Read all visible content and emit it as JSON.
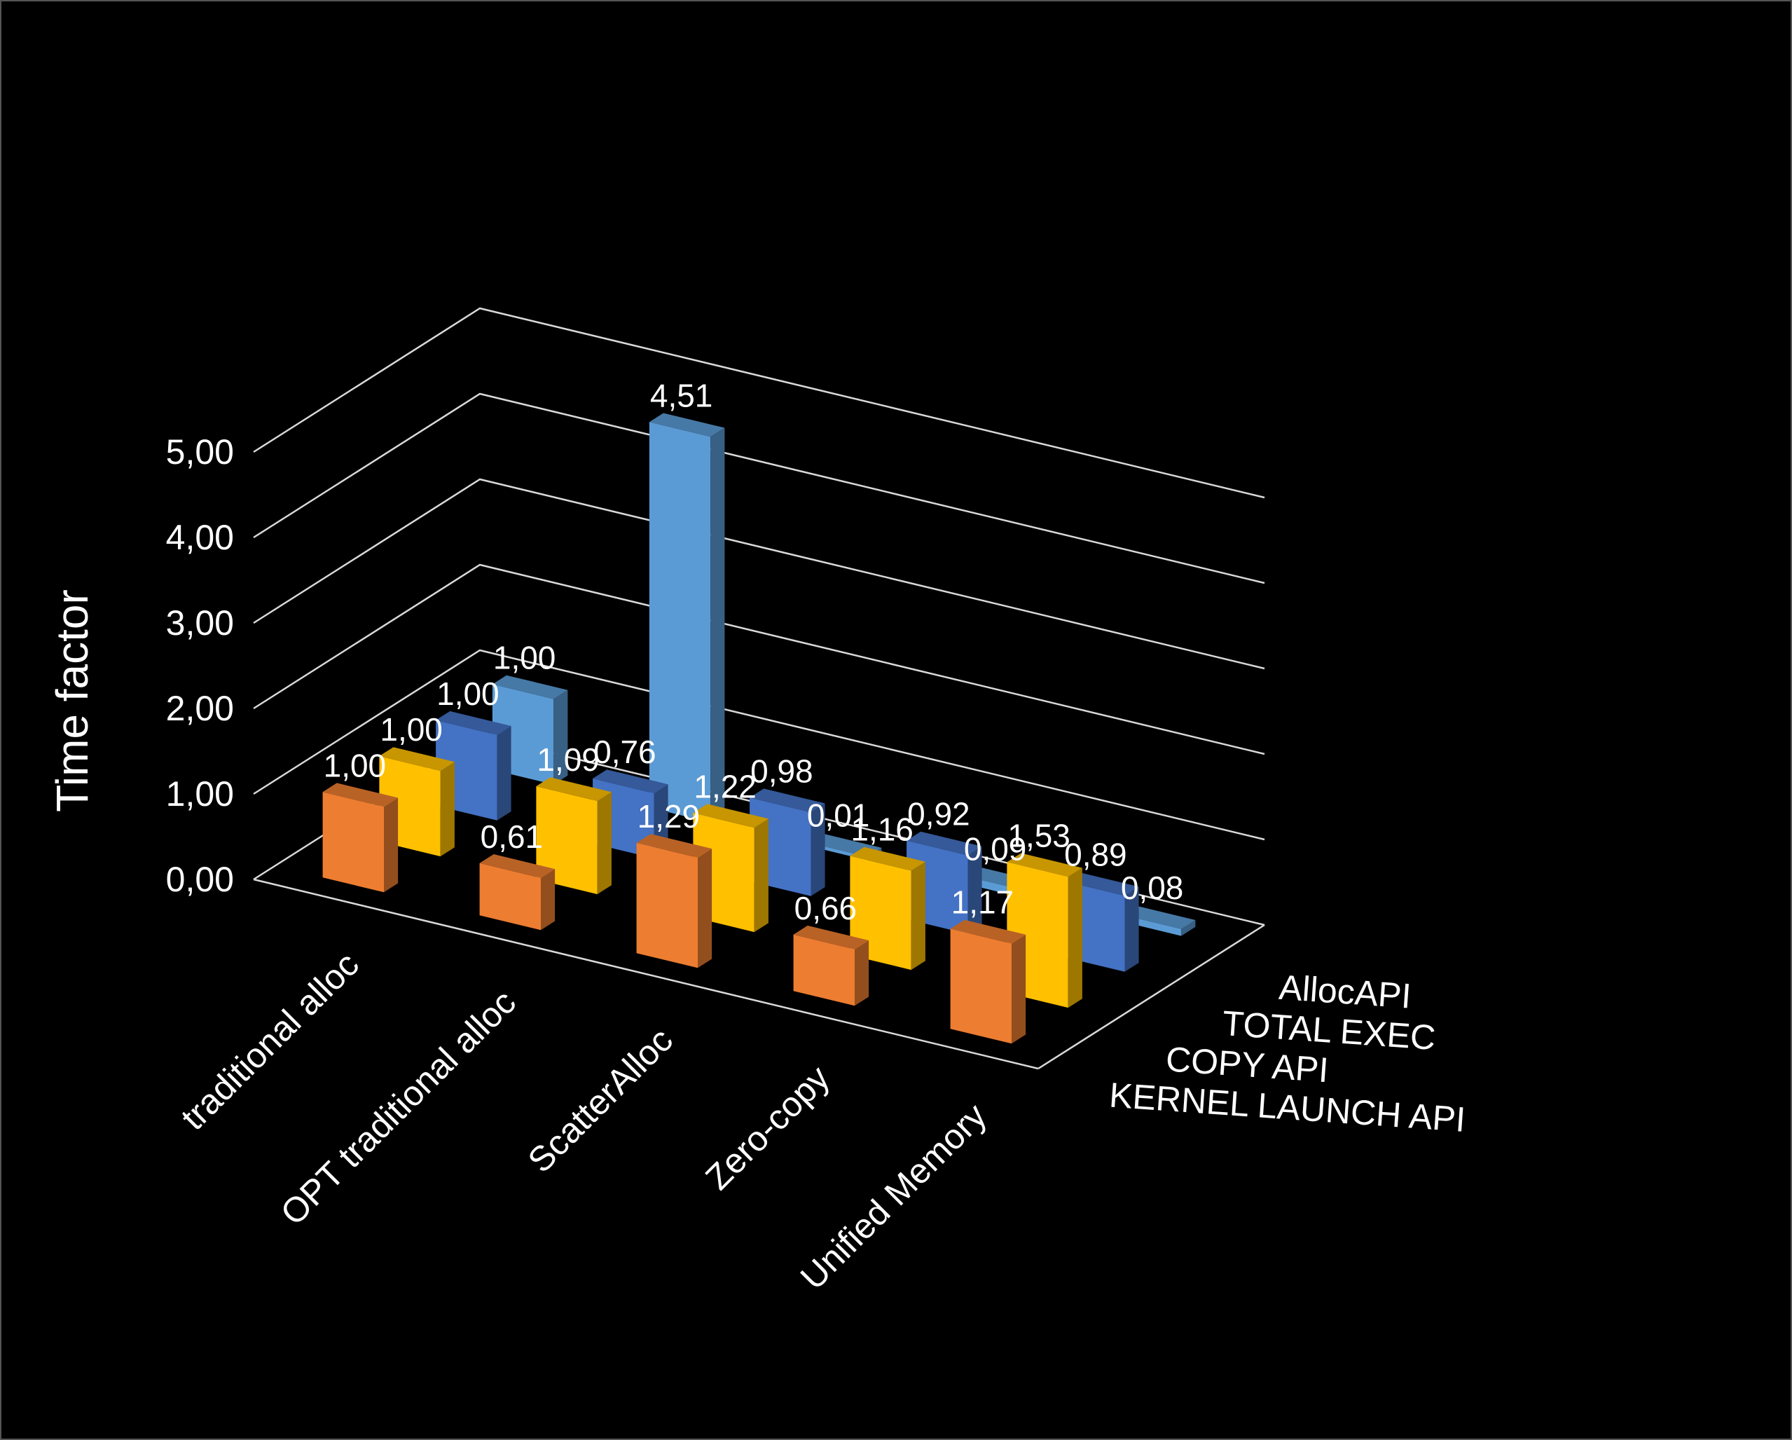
{
  "chart_data": {
    "type": "bar",
    "subtype": "3d-column",
    "title": "",
    "ylabel": "Time factor",
    "ylim": [
      0,
      5
    ],
    "yticks": [
      "0,00",
      "1,00",
      "2,00",
      "3,00",
      "4,00",
      "5,00"
    ],
    "grid": true,
    "background": "#000000",
    "categories": [
      "traditional alloc",
      "OPT traditional alloc",
      "ScatterAlloc",
      "Zero-copy",
      "Unified Memory"
    ],
    "series": [
      {
        "name": "KERNEL LAUNCH API",
        "color": "#ed7d31",
        "values": [
          1.0,
          0.61,
          1.29,
          0.66,
          1.17
        ],
        "labels": [
          "1,00",
          "0,61",
          "1,29",
          "0,66",
          "1,17"
        ]
      },
      {
        "name": "COPY API",
        "color": "#ffc000",
        "values": [
          1.0,
          1.09,
          1.22,
          1.16,
          1.53
        ],
        "labels": [
          "1,00",
          "1,09",
          "1,22",
          "1,16",
          "1,53"
        ]
      },
      {
        "name": "TOTAL EXEC",
        "color": "#4472c4",
        "values": [
          1.0,
          0.76,
          0.98,
          0.92,
          0.89
        ],
        "labels": [
          "1,00",
          "0,76",
          "0,98",
          "0,92",
          "0,89"
        ]
      },
      {
        "name": "AllocAPI",
        "color": "#5b9bd5",
        "values": [
          1.0,
          4.51,
          0.01,
          0.09,
          0.08
        ],
        "labels": [
          "1,00",
          "4,51",
          "0,01",
          "0,09",
          "0,08"
        ]
      }
    ]
  }
}
